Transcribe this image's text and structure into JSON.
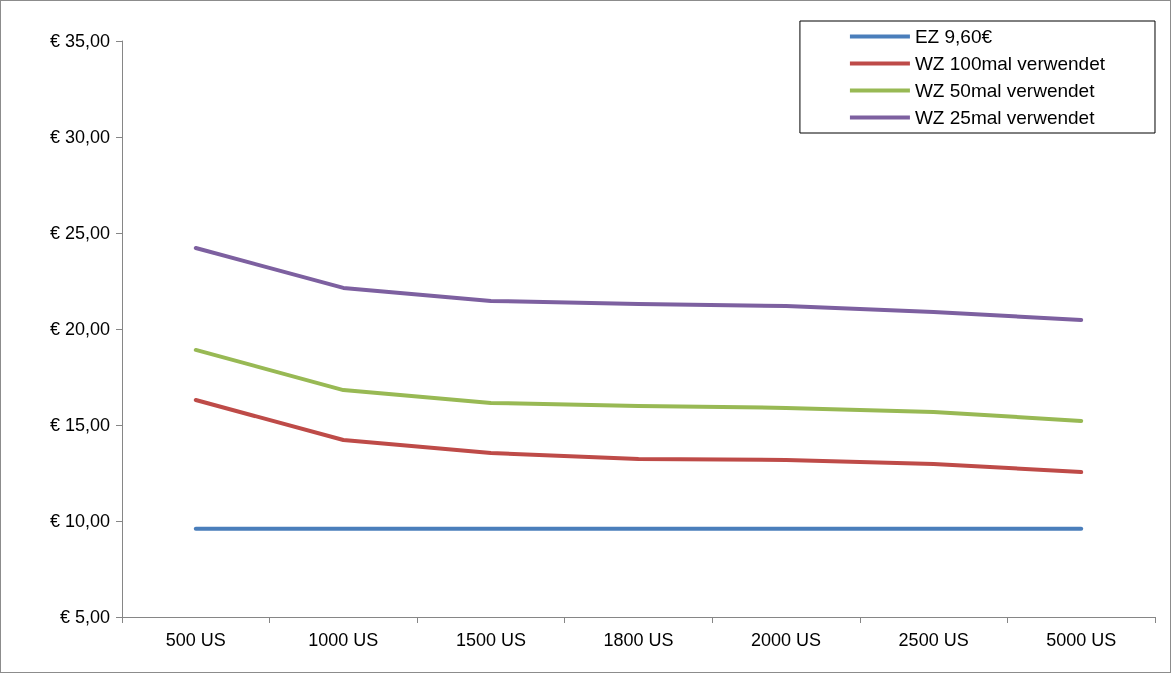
{
  "chart_data": {
    "type": "line",
    "categories": [
      "500 US",
      "1000 US",
      "1500 US",
      "1800 US",
      "2000 US",
      "2500 US",
      "5000 US"
    ],
    "series": [
      {
        "name": "EZ 9,60€",
        "color": "#4a7ebb",
        "values": [
          9.6,
          9.6,
          9.6,
          9.6,
          9.6,
          9.6,
          9.6
        ]
      },
      {
        "name": "WZ 100mal verwendet",
        "color": "#be4b48",
        "values": [
          16.3,
          14.22,
          13.54,
          13.23,
          13.18,
          12.97,
          12.55
        ]
      },
      {
        "name": "WZ 50mal verwendet",
        "color": "#98b954",
        "values": [
          18.91,
          16.82,
          16.15,
          15.99,
          15.89,
          15.68,
          15.21
        ]
      },
      {
        "name": "WZ 25mal verwendet",
        "color": "#7d60a0",
        "values": [
          24.22,
          22.14,
          21.46,
          21.3,
          21.2,
          20.89,
          20.47
        ]
      }
    ],
    "ylim": [
      5,
      35
    ],
    "yticks": [
      {
        "value": 5,
        "label": "€ 5,00"
      },
      {
        "value": 10,
        "label": "€ 10,00"
      },
      {
        "value": 15,
        "label": "€ 15,00"
      },
      {
        "value": 20,
        "label": "€ 20,00"
      },
      {
        "value": 25,
        "label": "€ 25,00"
      },
      {
        "value": 30,
        "label": "€ 30,00"
      },
      {
        "value": 35,
        "label": "€ 35,00"
      }
    ],
    "grid": false,
    "legend": "top right",
    "marker": "none",
    "line_style": "solid"
  }
}
